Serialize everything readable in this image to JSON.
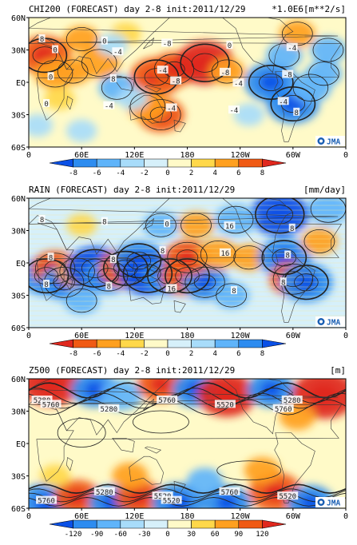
{
  "chart_data": [
    {
      "type": "heatmap",
      "title": "CHI200 (FORECAST) day 2-8 init:2011/12/29",
      "units": "*1.0E6[m**2/s]",
      "y_ticks": [
        "60N",
        "30N",
        "EQ",
        "30S",
        "60S"
      ],
      "x_ticks": [
        "0",
        "60E",
        "120E",
        "180",
        "120W",
        "60W",
        "0"
      ],
      "colorbar_ticks": [
        "-8",
        "-6",
        "-4",
        "-2",
        "0",
        "2",
        "4",
        "6",
        "8"
      ],
      "colorbar_colors": [
        "#0a50e6",
        "#2d8cf0",
        "#5fb4fa",
        "#a8dcfa",
        "#d6f0fa",
        "#fffac8",
        "#ffd84a",
        "#ffa020",
        "#f05a14",
        "#e0281e"
      ],
      "contour_labels": [
        "8",
        "-4",
        "-4",
        "0",
        "-8",
        "0",
        "-8",
        "-8",
        "-4",
        "0",
        "0",
        "-4",
        "-4",
        "8",
        "-4",
        "0",
        "-8",
        "8",
        "-4",
        "-4"
      ],
      "logo": "JMA",
      "blobs": [
        {
          "lon": 18,
          "lat": 25,
          "v": 6
        },
        {
          "lon": 30,
          "lat": 8,
          "v": 4
        },
        {
          "lon": 50,
          "lat": 10,
          "v": 3
        },
        {
          "lon": 80,
          "lat": 18,
          "v": 4
        },
        {
          "lon": 60,
          "lat": 40,
          "v": 3
        },
        {
          "lon": 110,
          "lat": 45,
          "v": 2
        },
        {
          "lon": 145,
          "lat": 5,
          "v": 6
        },
        {
          "lon": 165,
          "lat": 12,
          "v": 5
        },
        {
          "lon": 200,
          "lat": 18,
          "v": 7
        },
        {
          "lon": 225,
          "lat": 10,
          "v": 3
        },
        {
          "lon": 150,
          "lat": -30,
          "v": 5
        },
        {
          "lon": 135,
          "lat": -22,
          "v": 4
        },
        {
          "lon": 35,
          "lat": -15,
          "v": 2
        },
        {
          "lon": 100,
          "lat": -5,
          "v": -3
        },
        {
          "lon": 118,
          "lat": -15,
          "v": -2
        },
        {
          "lon": 95,
          "lat": 35,
          "v": -2
        },
        {
          "lon": 275,
          "lat": 0,
          "v": -6
        },
        {
          "lon": 300,
          "lat": -20,
          "v": -6
        },
        {
          "lon": 320,
          "lat": -5,
          "v": -4
        },
        {
          "lon": 290,
          "lat": 25,
          "v": -3
        },
        {
          "lon": 340,
          "lat": 30,
          "v": -3
        },
        {
          "lon": 305,
          "lat": 45,
          "v": 3
        },
        {
          "lon": 335,
          "lat": 8,
          "v": -3
        },
        {
          "lon": 250,
          "lat": -30,
          "v": -2
        },
        {
          "lon": 10,
          "lat": -40,
          "v": -2
        },
        {
          "lon": 60,
          "lat": -45,
          "v": -2
        }
      ]
    },
    {
      "type": "heatmap",
      "title": "RAIN (FORECAST) day 2-8 init:2011/12/29",
      "units": "[mm/day]",
      "y_ticks": [
        "60N",
        "30N",
        "EQ",
        "30S",
        "60S"
      ],
      "x_ticks": [
        "0",
        "60E",
        "120E",
        "180",
        "120W",
        "60W",
        "0"
      ],
      "colorbar_ticks": [
        "-8",
        "-6",
        "-4",
        "-2",
        "0",
        "2",
        "4",
        "6",
        "8"
      ],
      "colorbar_colors": [
        "#e0281e",
        "#f05a14",
        "#ffa020",
        "#ffd84a",
        "#fffac8",
        "#d6f0fa",
        "#a8dcfa",
        "#5fb4fa",
        "#2d8cf0",
        "#0a50e6"
      ],
      "contour_labels": [
        "8",
        "8",
        "8",
        "8",
        "16",
        "8",
        "0",
        "8",
        "8",
        "16",
        "8",
        "16",
        "8",
        "8",
        "8"
      ],
      "logo": "JMA",
      "blobs": [
        {
          "lon": 20,
          "lat": -12,
          "v": 6
        },
        {
          "lon": 30,
          "lat": -5,
          "v": -5
        },
        {
          "lon": 40,
          "lat": -18,
          "v": 5
        },
        {
          "lon": 55,
          "lat": -8,
          "v": -4
        },
        {
          "lon": 75,
          "lat": -5,
          "v": 7
        },
        {
          "lon": 90,
          "lat": -12,
          "v": 5
        },
        {
          "lon": 110,
          "lat": -5,
          "v": -6
        },
        {
          "lon": 125,
          "lat": 2,
          "v": 6
        },
        {
          "lon": 135,
          "lat": -10,
          "v": 7
        },
        {
          "lon": 160,
          "lat": -12,
          "v": 6
        },
        {
          "lon": 180,
          "lat": -12,
          "v": -6
        },
        {
          "lon": 200,
          "lat": -18,
          "v": 5
        },
        {
          "lon": 180,
          "lat": 5,
          "v": -5
        },
        {
          "lon": 215,
          "lat": 8,
          "v": -4
        },
        {
          "lon": 250,
          "lat": 5,
          "v": -3
        },
        {
          "lon": 290,
          "lat": 5,
          "v": 6
        },
        {
          "lon": 300,
          "lat": -15,
          "v": -5
        },
        {
          "lon": 315,
          "lat": -18,
          "v": 6
        },
        {
          "lon": 285,
          "lat": 45,
          "v": 7
        },
        {
          "lon": 235,
          "lat": 40,
          "v": 4
        },
        {
          "lon": 190,
          "lat": 35,
          "v": -3
        },
        {
          "lon": 150,
          "lat": 35,
          "v": 3
        },
        {
          "lon": 340,
          "lat": 50,
          "v": 4
        },
        {
          "lon": 60,
          "lat": 35,
          "v": -2
        },
        {
          "lon": 230,
          "lat": -30,
          "v": 3
        },
        {
          "lon": 60,
          "lat": -35,
          "v": 3
        },
        {
          "lon": 330,
          "lat": 20,
          "v": -3
        }
      ]
    },
    {
      "type": "heatmap",
      "title": "Z500 (FORECAST) day 2-8 init:2011/12/29",
      "units": "[m]",
      "y_ticks": [
        "60N",
        "30N",
        "EQ",
        "30S",
        "60S"
      ],
      "x_ticks": [
        "0",
        "60E",
        "120E",
        "180",
        "120W",
        "60W",
        "0"
      ],
      "colorbar_ticks": [
        "-120",
        "-90",
        "-60",
        "-30",
        "0",
        "30",
        "60",
        "90",
        "120"
      ],
      "colorbar_colors": [
        "#0a50e6",
        "#2d8cf0",
        "#5fb4fa",
        "#a8dcfa",
        "#d6f0fa",
        "#fffac8",
        "#ffd84a",
        "#ffa020",
        "#f05a14",
        "#e0281e"
      ],
      "contour_labels": [
        "5280",
        "5520",
        "5760",
        "5280",
        "5520",
        "5760",
        "5760",
        "5520",
        "5280",
        "5760",
        "5760",
        "5520",
        "5280"
      ],
      "logo": "JMA",
      "blobs": [
        {
          "lon": 25,
          "lat": 55,
          "v": 7
        },
        {
          "lon": 75,
          "lat": 50,
          "v": -5
        },
        {
          "lon": 105,
          "lat": 45,
          "v": -4
        },
        {
          "lon": 150,
          "lat": 55,
          "v": 5
        },
        {
          "lon": 190,
          "lat": 50,
          "v": -5
        },
        {
          "lon": 225,
          "lat": 45,
          "v": 7
        },
        {
          "lon": 275,
          "lat": 50,
          "v": -5
        },
        {
          "lon": 335,
          "lat": 45,
          "v": 8
        },
        {
          "lon": 305,
          "lat": 25,
          "v": 3
        },
        {
          "lon": 20,
          "lat": -55,
          "v": -6
        },
        {
          "lon": 55,
          "lat": -50,
          "v": 5
        },
        {
          "lon": 95,
          "lat": -55,
          "v": -5
        },
        {
          "lon": 125,
          "lat": -50,
          "v": 5
        },
        {
          "lon": 170,
          "lat": -55,
          "v": -6
        },
        {
          "lon": 225,
          "lat": -55,
          "v": -5
        },
        {
          "lon": 280,
          "lat": -45,
          "v": 6
        },
        {
          "lon": 320,
          "lat": -55,
          "v": -5
        },
        {
          "lon": 115,
          "lat": -30,
          "v": 3
        },
        {
          "lon": 265,
          "lat": -25,
          "v": 3
        },
        {
          "lon": 200,
          "lat": -35,
          "v": -3
        },
        {
          "lon": 30,
          "lat": -30,
          "v": 2
        }
      ]
    }
  ]
}
